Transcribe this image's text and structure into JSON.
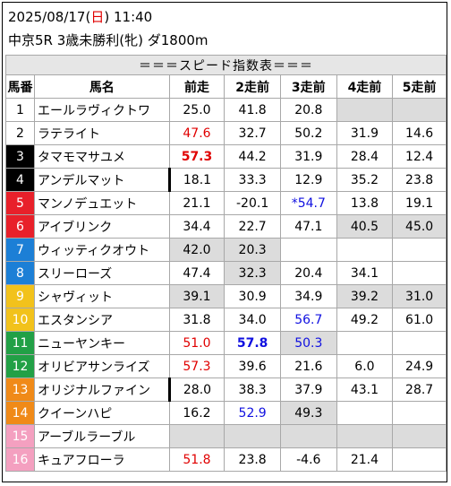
{
  "header": {
    "date": "2025/08/17",
    "weekday_open": "(",
    "weekday": "日",
    "weekday_close": ")",
    "time": "11:40",
    "race": "中京5R 3歳未勝利(牝) ダ1800m"
  },
  "table": {
    "title": "＝＝＝スピード指数表＝＝＝",
    "columns": [
      "馬番",
      "馬名",
      "前走",
      "2走前",
      "3走前",
      "4走前",
      "5走前"
    ],
    "rows": [
      {
        "num": "1",
        "name": "エールラヴィクトワ",
        "mark": false,
        "v": [
          "25.0",
          "41.8",
          "20.8",
          "",
          ""
        ],
        "c": [
          "",
          "",
          "",
          "",
          ""
        ],
        "g": [
          false,
          false,
          false,
          true,
          true
        ]
      },
      {
        "num": "2",
        "name": "ラテライト",
        "mark": false,
        "v": [
          "47.6",
          "32.7",
          "50.2",
          "31.9",
          "14.6"
        ],
        "c": [
          "red",
          "",
          "",
          "",
          ""
        ],
        "g": [
          false,
          false,
          false,
          false,
          false
        ]
      },
      {
        "num": "3",
        "name": "タマモマサユメ",
        "mark": false,
        "v": [
          "57.3",
          "44.2",
          "31.9",
          "28.4",
          "12.4"
        ],
        "c": [
          "red bold",
          "",
          "",
          "",
          ""
        ],
        "g": [
          false,
          false,
          false,
          false,
          false
        ]
      },
      {
        "num": "4",
        "name": "アンデルマット",
        "mark": true,
        "v": [
          "18.1",
          "33.3",
          "12.9",
          "35.2",
          "23.8"
        ],
        "c": [
          "",
          "",
          "",
          "",
          ""
        ],
        "g": [
          false,
          false,
          false,
          false,
          false
        ]
      },
      {
        "num": "5",
        "name": "マンノデュエット",
        "mark": false,
        "v": [
          "21.1",
          "-20.1",
          "*54.7",
          "13.8",
          "19.1"
        ],
        "c": [
          "",
          "",
          "blue",
          "",
          ""
        ],
        "g": [
          false,
          false,
          false,
          false,
          false
        ]
      },
      {
        "num": "6",
        "name": "アイブリンク",
        "mark": false,
        "v": [
          "34.4",
          "22.7",
          "47.1",
          "40.5",
          "45.0"
        ],
        "c": [
          "",
          "",
          "",
          "",
          ""
        ],
        "g": [
          false,
          false,
          false,
          true,
          true
        ]
      },
      {
        "num": "7",
        "name": "ウィッティクオウト",
        "mark": false,
        "v": [
          "42.0",
          "20.3",
          "",
          "",
          ""
        ],
        "c": [
          "",
          "",
          "",
          "",
          ""
        ],
        "g": [
          true,
          true,
          false,
          false,
          false
        ]
      },
      {
        "num": "8",
        "name": "スリーローズ",
        "mark": false,
        "v": [
          "47.4",
          "32.3",
          "20.4",
          "34.1",
          ""
        ],
        "c": [
          "",
          "",
          "",
          "",
          ""
        ],
        "g": [
          false,
          true,
          false,
          false,
          false
        ]
      },
      {
        "num": "9",
        "name": "シャヴィット",
        "mark": false,
        "v": [
          "39.1",
          "30.9",
          "34.9",
          "39.2",
          "31.0"
        ],
        "c": [
          "",
          "",
          "",
          "",
          ""
        ],
        "g": [
          true,
          false,
          false,
          true,
          true
        ]
      },
      {
        "num": "10",
        "name": "エスタンシア",
        "mark": false,
        "v": [
          "31.8",
          "34.0",
          "56.7",
          "49.2",
          "61.0"
        ],
        "c": [
          "",
          "",
          "blue",
          "",
          ""
        ],
        "g": [
          false,
          false,
          false,
          false,
          false
        ]
      },
      {
        "num": "11",
        "name": "ニューヤンキー",
        "mark": false,
        "v": [
          "51.0",
          "57.8",
          "50.3",
          "",
          ""
        ],
        "c": [
          "red",
          "blue bold",
          "blue",
          "",
          ""
        ],
        "g": [
          false,
          false,
          true,
          false,
          false
        ]
      },
      {
        "num": "12",
        "name": "オリビアサンライズ",
        "mark": false,
        "v": [
          "57.3",
          "39.6",
          "21.6",
          "6.0",
          "24.9"
        ],
        "c": [
          "red",
          "",
          "",
          "",
          ""
        ],
        "g": [
          false,
          false,
          false,
          false,
          false
        ]
      },
      {
        "num": "13",
        "name": "オリジナルファイン",
        "mark": true,
        "v": [
          "28.0",
          "38.3",
          "37.9",
          "43.1",
          "28.7"
        ],
        "c": [
          "",
          "",
          "",
          "",
          ""
        ],
        "g": [
          false,
          false,
          false,
          false,
          false
        ]
      },
      {
        "num": "14",
        "name": "クイーンハピ",
        "mark": false,
        "v": [
          "16.2",
          "52.9",
          "49.3",
          "",
          ""
        ],
        "c": [
          "",
          "blue",
          "",
          "",
          ""
        ],
        "g": [
          false,
          false,
          true,
          false,
          false
        ]
      },
      {
        "num": "15",
        "name": "アーブルラーブル",
        "mark": false,
        "v": [
          "",
          "",
          "",
          "",
          ""
        ],
        "c": [
          "",
          "",
          "",
          "",
          ""
        ],
        "g": [
          true,
          true,
          true,
          true,
          true
        ]
      },
      {
        "num": "16",
        "name": "キュアフローラ",
        "mark": false,
        "v": [
          "51.8",
          "23.8",
          "-4.6",
          "21.4",
          ""
        ],
        "c": [
          "red",
          "",
          "",
          "",
          ""
        ],
        "g": [
          false,
          false,
          false,
          false,
          false
        ]
      }
    ]
  },
  "colors": {
    "frame_1": "#ffffff",
    "frame_2": "#000000",
    "frame_3": "#e8202a",
    "frame_4": "#1c7fd6",
    "frame_5": "#f2c21b",
    "frame_6": "#22a046",
    "frame_7": "#f08a18",
    "frame_8": "#f4a0c0"
  }
}
